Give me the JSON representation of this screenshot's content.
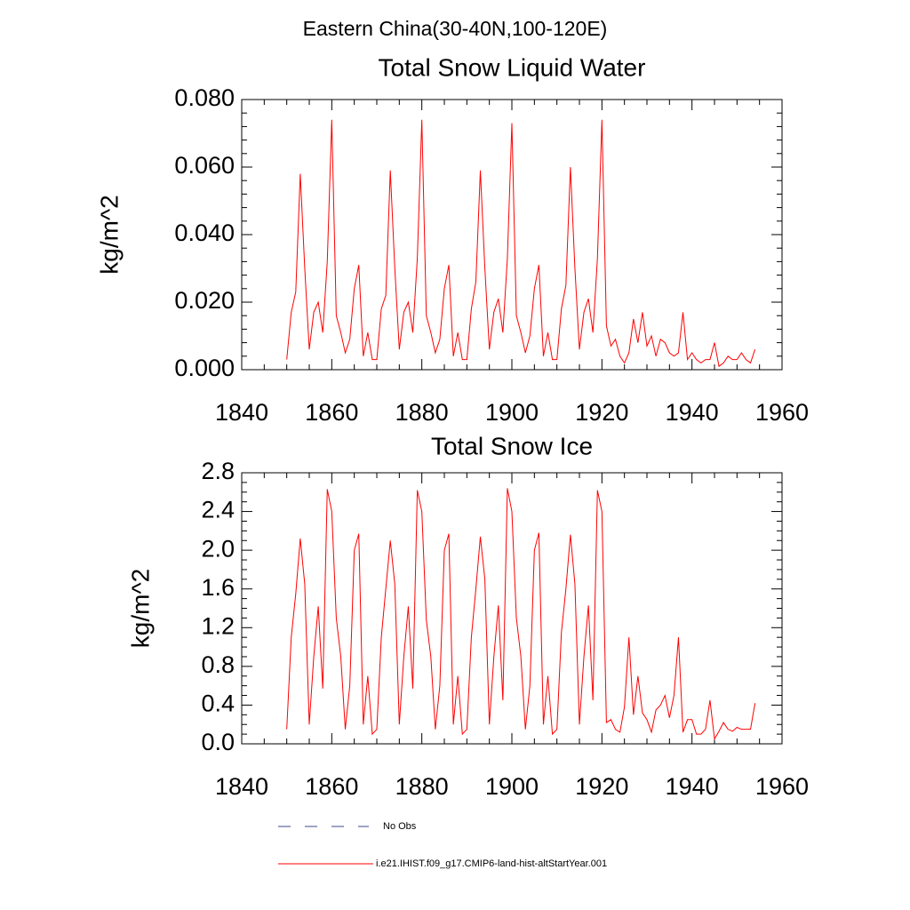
{
  "title": "Eastern China(30-40N,100-120E)",
  "legend": {
    "entries": [
      {
        "name": "No Obs",
        "color": "#3d4a8a",
        "style": "dashed"
      }
    ]
  },
  "chart_data": [
    {
      "type": "line",
      "title": "Total Snow Liquid Water",
      "y_label": "kg/m^2",
      "x": [
        1850,
        1851,
        1852,
        1853,
        1854,
        1855,
        1856,
        1857,
        1858,
        1859,
        1860,
        1861,
        1862,
        1863,
        1864,
        1865,
        1866,
        1867,
        1868,
        1869,
        1870,
        1871,
        1872,
        1873,
        1874,
        1875,
        1876,
        1877,
        1878,
        1879,
        1880,
        1881,
        1882,
        1883,
        1884,
        1885,
        1886,
        1887,
        1888,
        1889,
        1890,
        1891,
        1892,
        1893,
        1894,
        1895,
        1896,
        1897,
        1898,
        1899,
        1900,
        1901,
        1902,
        1903,
        1904,
        1905,
        1906,
        1907,
        1908,
        1909,
        1910,
        1911,
        1912,
        1913,
        1914,
        1915,
        1916,
        1917,
        1918,
        1919,
        1920,
        1921,
        1922,
        1923,
        1924,
        1925,
        1926,
        1927,
        1928,
        1929,
        1930,
        1931,
        1932,
        1933,
        1934,
        1935,
        1936,
        1937,
        1938,
        1939,
        1940,
        1941,
        1942,
        1943,
        1944,
        1945,
        1946,
        1947,
        1948,
        1949,
        1950,
        1951,
        1952,
        1953,
        1954
      ],
      "series": [
        {
          "name": "i.e21.IHIST.f09_g17.CMIP6-land-hist-altStartYear.001",
          "color": "#ff0000",
          "values": [
            0.003,
            0.017,
            0.023,
            0.058,
            0.03,
            0.006,
            0.017,
            0.02,
            0.011,
            0.032,
            0.074,
            0.016,
            0.011,
            0.005,
            0.009,
            0.024,
            0.031,
            0.004,
            0.011,
            0.003,
            0.003,
            0.018,
            0.022,
            0.059,
            0.03,
            0.006,
            0.017,
            0.02,
            0.011,
            0.033,
            0.074,
            0.016,
            0.011,
            0.005,
            0.009,
            0.024,
            0.031,
            0.004,
            0.011,
            0.003,
            0.003,
            0.018,
            0.026,
            0.059,
            0.03,
            0.006,
            0.017,
            0.021,
            0.011,
            0.033,
            0.073,
            0.016,
            0.011,
            0.005,
            0.01,
            0.024,
            0.031,
            0.004,
            0.011,
            0.003,
            0.003,
            0.018,
            0.025,
            0.06,
            0.03,
            0.006,
            0.017,
            0.021,
            0.011,
            0.033,
            0.074,
            0.013,
            0.007,
            0.009,
            0.004,
            0.002,
            0.005,
            0.015,
            0.008,
            0.017,
            0.007,
            0.01,
            0.004,
            0.009,
            0.008,
            0.005,
            0.004,
            0.005,
            0.017,
            0.003,
            0.005,
            0.003,
            0.002,
            0.003,
            0.003,
            0.008,
            0.001,
            0.002,
            0.004,
            0.003,
            0.003,
            0.005,
            0.003,
            0.002,
            0.006
          ]
        }
      ],
      "xlim": [
        1840,
        1960
      ],
      "xticks": [
        1840,
        1860,
        1880,
        1900,
        1920,
        1940,
        1960
      ],
      "x_minor_per_major": 4,
      "ylim": [
        0,
        0.08
      ],
      "yticks": [
        {
          "value": 0,
          "label": "0.000"
        },
        {
          "value": 0.02,
          "label": "0.020"
        },
        {
          "value": 0.04,
          "label": "0.040"
        },
        {
          "value": 0.06,
          "label": "0.060"
        },
        {
          "value": 0.08,
          "label": "0.080"
        }
      ],
      "y_minor_per_major": 5
    },
    {
      "type": "line",
      "title": "Total Snow Ice",
      "y_label": "kg/m^2",
      "x": [
        1850,
        1851,
        1852,
        1853,
        1854,
        1855,
        1856,
        1857,
        1858,
        1859,
        1860,
        1861,
        1862,
        1863,
        1864,
        1865,
        1866,
        1867,
        1868,
        1869,
        1870,
        1871,
        1872,
        1873,
        1874,
        1875,
        1876,
        1877,
        1878,
        1879,
        1880,
        1881,
        1882,
        1883,
        1884,
        1885,
        1886,
        1887,
        1888,
        1889,
        1890,
        1891,
        1892,
        1893,
        1894,
        1895,
        1896,
        1897,
        1898,
        1899,
        1900,
        1901,
        1902,
        1903,
        1904,
        1905,
        1906,
        1907,
        1908,
        1909,
        1910,
        1911,
        1912,
        1913,
        1914,
        1915,
        1916,
        1917,
        1918,
        1919,
        1920,
        1921,
        1922,
        1923,
        1924,
        1925,
        1926,
        1927,
        1928,
        1929,
        1930,
        1931,
        1932,
        1933,
        1934,
        1935,
        1936,
        1937,
        1938,
        1939,
        1940,
        1941,
        1942,
        1943,
        1944,
        1945,
        1946,
        1947,
        1948,
        1949,
        1950,
        1951,
        1952,
        1953,
        1954
      ],
      "series": [
        {
          "name": "i.e21.IHIST.f09_g17.CMIP6-land-hist-altStartYear.001",
          "color": "#ff0000",
          "values": [
            0.15,
            1.1,
            1.55,
            2.12,
            1.65,
            0.2,
            0.9,
            1.42,
            0.57,
            2.63,
            2.4,
            1.3,
            0.9,
            0.15,
            0.6,
            2.0,
            2.17,
            0.2,
            0.7,
            0.1,
            0.15,
            1.1,
            1.6,
            2.1,
            1.65,
            0.2,
            0.9,
            1.42,
            0.57,
            2.62,
            2.4,
            1.28,
            0.9,
            0.15,
            0.6,
            2.0,
            2.17,
            0.2,
            0.7,
            0.1,
            0.15,
            1.1,
            1.6,
            2.14,
            1.7,
            0.2,
            0.9,
            1.43,
            0.45,
            2.64,
            2.4,
            1.3,
            0.9,
            0.15,
            0.6,
            2.0,
            2.18,
            0.2,
            0.7,
            0.1,
            0.15,
            1.15,
            1.6,
            2.16,
            1.65,
            0.2,
            0.9,
            1.43,
            0.45,
            2.62,
            2.4,
            0.22,
            0.25,
            0.15,
            0.12,
            0.38,
            1.1,
            0.3,
            0.7,
            0.32,
            0.25,
            0.12,
            0.35,
            0.4,
            0.5,
            0.27,
            0.5,
            1.1,
            0.12,
            0.25,
            0.25,
            0.1,
            0.1,
            0.15,
            0.45,
            0.05,
            0.13,
            0.22,
            0.15,
            0.13,
            0.17,
            0.15,
            0.15,
            0.15,
            0.42
          ]
        }
      ],
      "xlim": [
        1840,
        1960
      ],
      "xticks": [
        1840,
        1860,
        1880,
        1900,
        1920,
        1940,
        1960
      ],
      "x_minor_per_major": 4,
      "ylim": [
        0,
        2.8
      ],
      "yticks": [
        {
          "value": 0,
          "label": "0.0"
        },
        {
          "value": 0.4,
          "label": "0.4"
        },
        {
          "value": 0.8,
          "label": "0.8"
        },
        {
          "value": 1.2,
          "label": "1.2"
        },
        {
          "value": 1.6,
          "label": "1.6"
        },
        {
          "value": 2.0,
          "label": "2.0"
        },
        {
          "value": 2.4,
          "label": "2.4"
        },
        {
          "value": 2.8,
          "label": "2.8"
        }
      ],
      "y_minor_per_major": 4
    }
  ]
}
